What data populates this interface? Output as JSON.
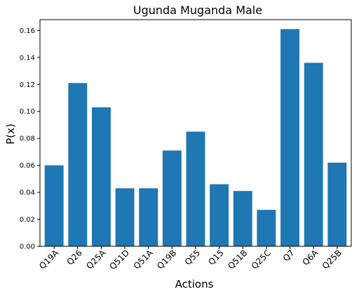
{
  "chart_data": {
    "type": "bar",
    "title": "Ugunda Muganda Male",
    "xlabel": "Actions",
    "ylabel": "P(x)",
    "categories": [
      "Q19A",
      "Q26",
      "Q25A",
      "Q51D",
      "Q51A",
      "Q19B",
      "Q55",
      "Q15",
      "Q51B",
      "Q25C",
      "Q7",
      "Q6A",
      "Q25B"
    ],
    "values": [
      0.06,
      0.121,
      0.103,
      0.043,
      0.043,
      0.071,
      0.085,
      0.046,
      0.041,
      0.027,
      0.161,
      0.136,
      0.062
    ],
    "ylim": [
      0,
      0.168
    ],
    "yticks": [
      0.0,
      0.02,
      0.04,
      0.06,
      0.08,
      0.1,
      0.12,
      0.14,
      0.16
    ],
    "ytick_labels": [
      "0.00",
      "0.02",
      "0.04",
      "0.06",
      "0.08",
      "0.10",
      "0.12",
      "0.14",
      "0.16"
    ],
    "bar_color": "#1f77b4",
    "grid": false,
    "legend": "none"
  }
}
